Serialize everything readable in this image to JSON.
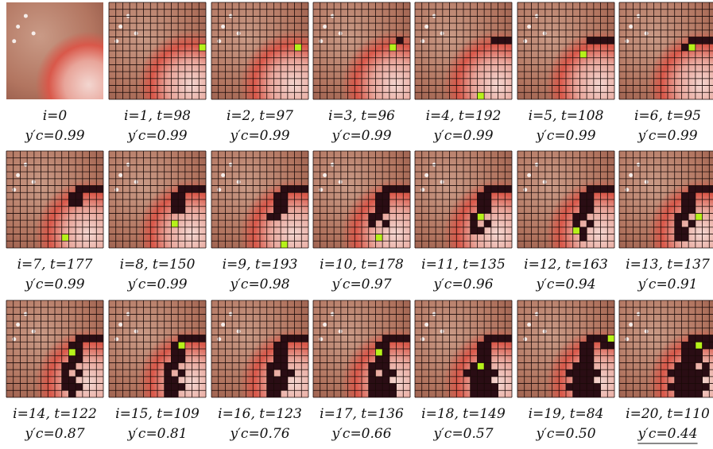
{
  "panels": [
    {
      "line1": "i=0",
      "line2": "y′c=0.99"
    },
    {
      "line1": "i=1, t=98",
      "line2": "y′c=0.99"
    },
    {
      "line1": "i=2, t=97",
      "line2": "y′c=0.99"
    },
    {
      "line1": "i=3, t=96",
      "line2": "y′c=0.99"
    },
    {
      "line1": "i=4, t=192",
      "line2": "y′c=0.99"
    },
    {
      "line1": "i=5, t=108",
      "line2": "y′c=0.99"
    },
    {
      "line1": "i=6, t=95",
      "line2": "y′c=0.99"
    },
    {
      "line1": "i=7, t=177",
      "line2": "y′c=0.99"
    },
    {
      "line1": "i=8, t=150",
      "line2": "y′c=0.99"
    },
    {
      "line1": "i=9, t=193",
      "line2": "y′c=0.98"
    },
    {
      "line1": "i=10, t=178",
      "line2": "y′c=0.97"
    },
    {
      "line1": "i=11, t=135",
      "line2": "y′c=0.96"
    },
    {
      "line1": "i=12, t=163",
      "line2": "y′c=0.94"
    },
    {
      "line1": "i=13, t=137",
      "line2": "y′c=0.91"
    },
    {
      "line1": "i=14, t=122",
      "line2": "y′c=0.87"
    },
    {
      "line1": "i=15, t=109",
      "line2": "y′c=0.81"
    },
    {
      "line1": "i=16, t=123",
      "line2": "y′c=0.76"
    },
    {
      "line1": "i=17, t=136",
      "line2": "y′c=0.66"
    },
    {
      "line1": "i=18, t=149",
      "line2": "y′c=0.57"
    },
    {
      "line1": "i=19, t=84",
      "line2": "y′c=0.50"
    },
    {
      "line1": "i=20, t=110",
      "line2": "y′c=0.44"
    }
  ]
}
